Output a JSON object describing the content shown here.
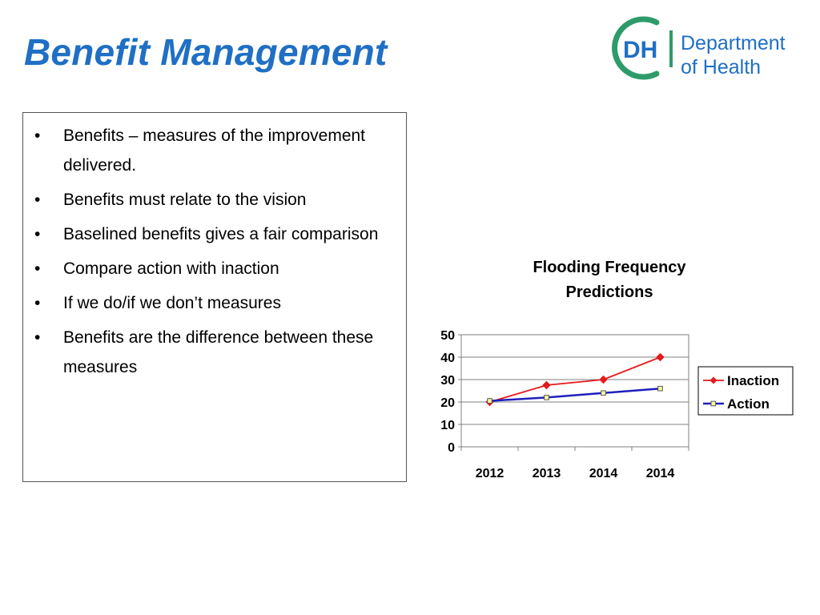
{
  "slide": {
    "title": "Benefit Management",
    "logo": {
      "initials": "DH",
      "line1": "Department",
      "line2": "of Health",
      "colors": {
        "blue": "#1f6fc5",
        "green": "#2e9b6a"
      }
    },
    "bullets": [
      "Benefits – measures of the improvement delivered.",
      "Benefits must relate to the vision",
      "Baselined benefits gives a fair comparison",
      "Compare action with inaction",
      "If we do/if we don’t measures",
      "Benefits are the difference between these measures"
    ]
  },
  "chart_data": {
    "type": "line",
    "title_lines": [
      "Flooding Frequency",
      "Predictions"
    ],
    "categories": [
      "2012",
      "2013",
      "2014",
      "2014"
    ],
    "series": [
      {
        "name": "Inaction",
        "values": [
          20,
          27.5,
          30,
          40
        ],
        "color": "#e41a1c",
        "marker": "diamond"
      },
      {
        "name": "Action",
        "values": [
          20.5,
          22,
          24,
          26
        ],
        "color": "#1f1fbf",
        "marker": "square",
        "marker_fill": "#ffff99"
      }
    ],
    "ylim": [
      0,
      50
    ],
    "yticks": [
      0,
      10,
      20,
      30,
      40,
      50
    ],
    "grid": true,
    "legend": "right"
  }
}
